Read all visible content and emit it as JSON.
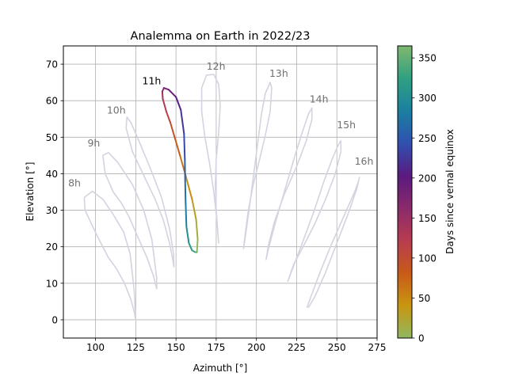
{
  "chart_data": {
    "type": "line",
    "title": "Analemma on Earth in 2022/23",
    "xlabel": "Azimuth [°]",
    "ylabel": "Elevation [°]",
    "xlim": [
      80,
      275
    ],
    "ylim": [
      -5,
      75
    ],
    "xticks": [
      100,
      125,
      150,
      175,
      200,
      225,
      250,
      275
    ],
    "yticks": [
      0,
      10,
      20,
      30,
      40,
      50,
      60,
      70
    ],
    "grid": true,
    "colorbar": {
      "label": "Days since vernal equinox",
      "range": [
        0,
        365
      ],
      "ticks": [
        0,
        50,
        100,
        150,
        200,
        250,
        300,
        350
      ],
      "colormap": [
        "#90b860",
        "#c89610",
        "#c85a18",
        "#b83c50",
        "#8a2a6a",
        "#5a1a80",
        "#3050b0",
        "#1a80a0",
        "#30a080",
        "#80b870"
      ]
    },
    "background_color": "#d2d4e0",
    "highlight_hour": "11h",
    "series": [
      {
        "label": "8h",
        "label_position": {
          "x": 83,
          "y": 36.5
        },
        "points": [
          [
            124.9,
            0
          ],
          [
            124,
            8
          ],
          [
            121.5,
            18
          ],
          [
            117.5,
            24
          ],
          [
            110.8,
            29
          ],
          [
            104.5,
            33
          ],
          [
            98,
            35.2
          ],
          [
            93,
            33.5
          ],
          [
            93.5,
            30
          ],
          [
            101,
            23
          ],
          [
            108,
            17
          ],
          [
            113,
            14
          ],
          [
            118,
            10
          ],
          [
            122,
            5.5
          ],
          [
            124.2,
            1.8
          ],
          [
            124.9,
            0
          ]
        ]
      },
      {
        "label": "9h",
        "label_position": {
          "x": 95,
          "y": 47.5
        },
        "points": [
          [
            138,
            8.5
          ],
          [
            138,
            11.5
          ],
          [
            135,
            22
          ],
          [
            130,
            30
          ],
          [
            123,
            37
          ],
          [
            114,
            43
          ],
          [
            108,
            45.8
          ],
          [
            104.5,
            45
          ],
          [
            106,
            40
          ],
          [
            111,
            35
          ],
          [
            116,
            32
          ],
          [
            121,
            28
          ],
          [
            126,
            23
          ],
          [
            132,
            17
          ],
          [
            136,
            12
          ],
          [
            138,
            8.5
          ]
        ]
      },
      {
        "label": "10h",
        "label_position": {
          "x": 107,
          "y": 56.5
        },
        "points": [
          [
            148.7,
            14.5
          ],
          [
            148.5,
            18
          ],
          [
            146,
            25
          ],
          [
            141,
            33.5
          ],
          [
            134,
            41.5
          ],
          [
            126,
            50
          ],
          [
            122,
            54
          ],
          [
            119.5,
            55.5
          ],
          [
            119,
            52.5
          ],
          [
            123,
            46
          ],
          [
            130.5,
            39
          ],
          [
            137,
            33
          ],
          [
            142,
            27.5
          ],
          [
            146,
            21
          ],
          [
            148,
            16.5
          ],
          [
            148.7,
            14.5
          ]
        ]
      },
      {
        "label": "11h",
        "label_position": {
          "x": 129,
          "y": 64.5
        },
        "points": [
          [
            163,
            18.5
          ],
          [
            163.5,
            22
          ],
          [
            162.5,
            27.5
          ],
          [
            160,
            33
          ],
          [
            156,
            39.5
          ],
          [
            152.5,
            45
          ],
          [
            149.5,
            49.5
          ],
          [
            146.5,
            54
          ],
          [
            144,
            57
          ],
          [
            141.8,
            60.5
          ],
          [
            141.5,
            62.5
          ],
          [
            142.5,
            63.5
          ],
          [
            145.5,
            63
          ],
          [
            150,
            61
          ],
          [
            153,
            57.5
          ],
          [
            155,
            51
          ],
          [
            155.5,
            44
          ],
          [
            155.7,
            38
          ],
          [
            156,
            32
          ],
          [
            156.5,
            25.5
          ],
          [
            158,
            21
          ],
          [
            160,
            19
          ],
          [
            162,
            18.5
          ],
          [
            163,
            18.5
          ]
        ]
      },
      {
        "label": "12h",
        "label_position": {
          "x": 169,
          "y": 68.5
        },
        "points": [
          [
            176.5,
            21
          ],
          [
            175.5,
            27
          ],
          [
            173.5,
            35
          ],
          [
            171,
            42.5
          ],
          [
            168,
            50
          ],
          [
            166,
            57
          ],
          [
            166,
            63.5
          ],
          [
            169,
            67
          ],
          [
            173.5,
            67.2
          ],
          [
            176.5,
            64.5
          ],
          [
            177.5,
            58.5
          ],
          [
            176.5,
            51
          ],
          [
            175,
            44
          ],
          [
            174.5,
            37
          ],
          [
            175,
            30
          ],
          [
            176,
            24
          ],
          [
            176.5,
            21
          ]
        ]
      },
      {
        "label": "13h",
        "label_position": {
          "x": 208,
          "y": 66.5
        },
        "points": [
          [
            192,
            19.5
          ],
          [
            193.5,
            24
          ],
          [
            196,
            32
          ],
          [
            198.5,
            40.5
          ],
          [
            201,
            49
          ],
          [
            203,
            56
          ],
          [
            205.5,
            62
          ],
          [
            208.5,
            65
          ],
          [
            209.5,
            63.5
          ],
          [
            208.5,
            57
          ],
          [
            205.5,
            50.5
          ],
          [
            202,
            44
          ],
          [
            198,
            37
          ],
          [
            195,
            30
          ],
          [
            193,
            23.5
          ],
          [
            192,
            19.5
          ]
        ]
      },
      {
        "label": "14h",
        "label_position": {
          "x": 233,
          "y": 59.5
        },
        "points": [
          [
            206,
            16.5
          ],
          [
            207.5,
            19.5
          ],
          [
            212,
            27
          ],
          [
            218,
            36
          ],
          [
            224,
            45
          ],
          [
            229,
            52
          ],
          [
            232.5,
            56.5
          ],
          [
            234.5,
            58
          ],
          [
            234.5,
            55
          ],
          [
            231,
            49
          ],
          [
            225,
            42
          ],
          [
            217,
            34
          ],
          [
            211,
            26.5
          ],
          [
            207.5,
            20.5
          ],
          [
            206,
            16.5
          ]
        ]
      },
      {
        "label": "15h",
        "label_position": {
          "x": 250,
          "y": 52.5
        },
        "points": [
          [
            219.5,
            10.5
          ],
          [
            222,
            13.5
          ],
          [
            228.5,
            21
          ],
          [
            236,
            30
          ],
          [
            242,
            38
          ],
          [
            247.5,
            44.5
          ],
          [
            251,
            48
          ],
          [
            252.5,
            49
          ],
          [
            252.5,
            46
          ],
          [
            249,
            40
          ],
          [
            243,
            33
          ],
          [
            236,
            26
          ],
          [
            229,
            20
          ],
          [
            223,
            15
          ],
          [
            219.5,
            10.5
          ]
        ]
      },
      {
        "label": "16h",
        "label_position": {
          "x": 261,
          "y": 42.5
        },
        "points": [
          [
            231.5,
            3.5
          ],
          [
            234,
            6.5
          ],
          [
            240,
            13.5
          ],
          [
            246,
            20
          ],
          [
            252,
            26
          ],
          [
            257,
            31
          ],
          [
            261,
            35
          ],
          [
            263.5,
            38
          ],
          [
            264,
            39
          ],
          [
            262.5,
            36
          ],
          [
            257,
            29
          ],
          [
            250,
            21
          ],
          [
            243,
            13
          ],
          [
            236.5,
            6.5
          ],
          [
            232.5,
            3.5
          ],
          [
            231.5,
            3.5
          ]
        ]
      }
    ]
  }
}
